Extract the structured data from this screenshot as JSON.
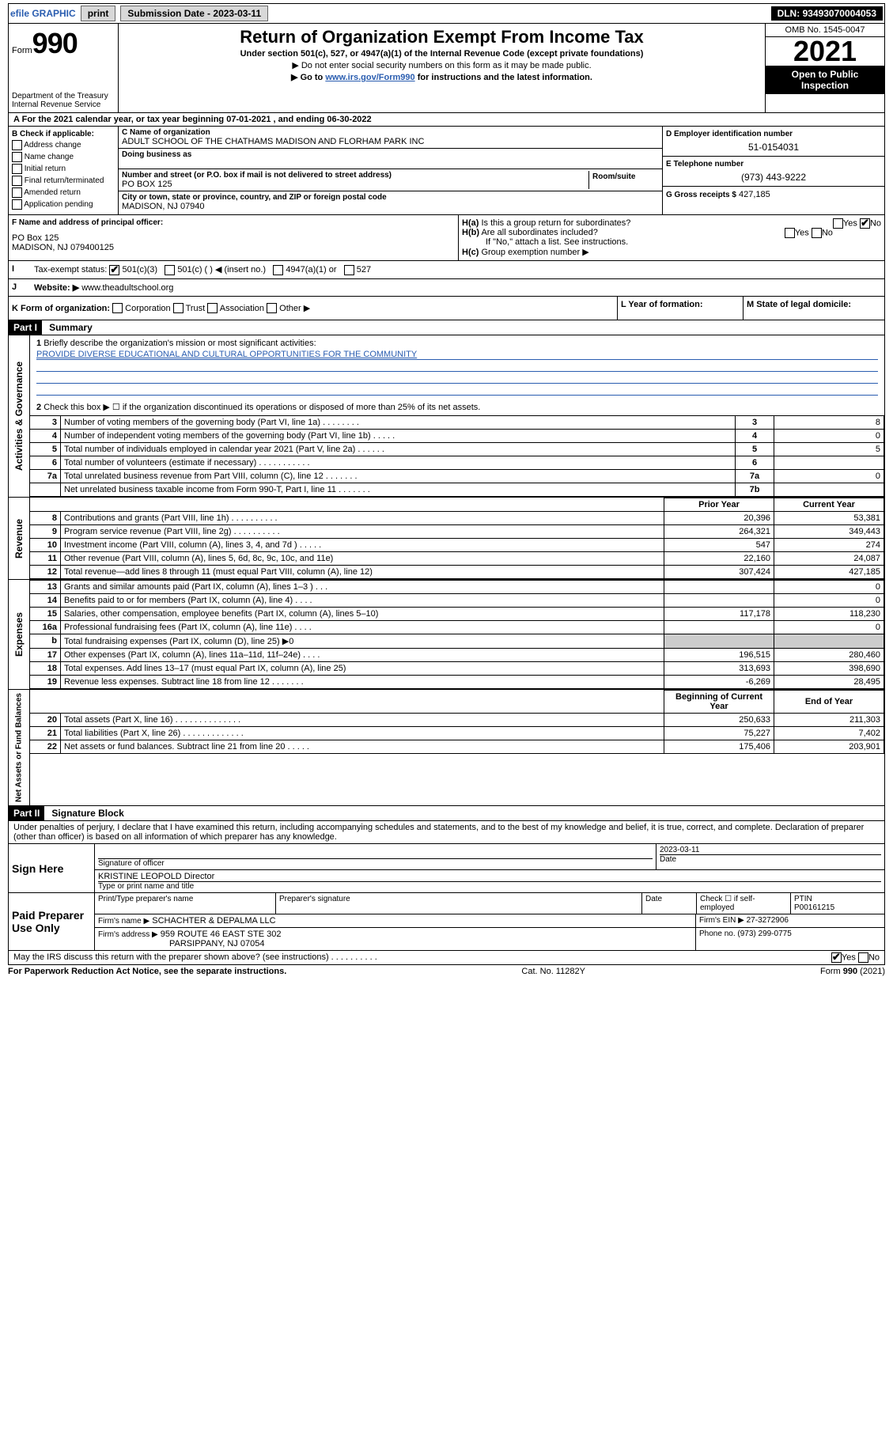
{
  "topbar": {
    "efile": "efile GRAPHIC",
    "print": "print",
    "subdate_label": "Submission Date - ",
    "subdate": "2023-03-11",
    "dln_label": "DLN: ",
    "dln": "93493070004053"
  },
  "header": {
    "form_prefix": "Form",
    "form_num": "990",
    "title": "Return of Organization Exempt From Income Tax",
    "subtitle": "Under section 501(c), 527, or 4947(a)(1) of the Internal Revenue Code (except private foundations)",
    "notice1": "▶ Do not enter social security numbers on this form as it may be made public.",
    "notice2_pre": "▶ Go to ",
    "notice2_link": "www.irs.gov/Form990",
    "notice2_post": " for instructions and the latest information.",
    "dept": "Department of the Treasury\nInternal Revenue Service",
    "omb": "OMB No. 1545-0047",
    "year": "2021",
    "inspection": "Open to Public Inspection"
  },
  "yearline": {
    "text_pre": "For the 2021 calendar year, or tax year beginning ",
    "begin": "07-01-2021",
    "mid": " , and ending ",
    "end": "06-30-2022"
  },
  "boxB": {
    "title": "B Check if applicable:",
    "items": [
      "Address change",
      "Name change",
      "Initial return",
      "Final return/terminated",
      "Amended return",
      "Application pending"
    ]
  },
  "boxC": {
    "label": "C Name of organization",
    "name": "ADULT SCHOOL OF THE CHATHAMS MADISON AND FLORHAM PARK INC",
    "dba_label": "Doing business as",
    "addr_label": "Number and street (or P.O. box if mail is not delivered to street address)",
    "room_label": "Room/suite",
    "addr": "PO Box 125",
    "city_label": "City or town, state or province, country, and ZIP or foreign postal code",
    "city": "MADISON, NJ  07940"
  },
  "boxD": {
    "label": "D Employer identification number",
    "val": "51-0154031"
  },
  "boxE": {
    "label": "E Telephone number",
    "val": "(973) 443-9222"
  },
  "boxG": {
    "label": "G Gross receipts $",
    "val": "427,185"
  },
  "boxF": {
    "label": "F Name and address of principal officer:",
    "addr1": "PO Box 125",
    "addr2": "MADISON, NJ  079400125"
  },
  "boxH": {
    "a": "Is this a group return for subordinates?",
    "b": "Are all subordinates included?",
    "c": "Group exemption number ▶",
    "note": "If \"No,\" attach a list. See instructions.",
    "yes": "Yes",
    "no": "No"
  },
  "boxI": {
    "label": "Tax-exempt status:",
    "o1": "501(c)(3)",
    "o2": "501(c) (  ) ◀ (insert no.)",
    "o3": "4947(a)(1) or",
    "o4": "527"
  },
  "boxJ": {
    "label": "Website: ▶",
    "val": "www.theadultschool.org"
  },
  "boxK": {
    "label": "K Form of organization:",
    "o1": "Corporation",
    "o2": "Trust",
    "o3": "Association",
    "o4": "Other ▶"
  },
  "boxL": {
    "label": "L Year of formation:"
  },
  "boxM": {
    "label": "M State of legal domicile:"
  },
  "part1": {
    "header": "Part I",
    "title": "Summary",
    "vert_activities": "Activities & Governance",
    "vert_revenue": "Revenue",
    "vert_expenses": "Expenses",
    "vert_net": "Net Assets or Fund Balances",
    "line1": "Briefly describe the organization's mission or most significant activities:",
    "mission": "PROVIDE DIVERSE EDUCATIONAL AND CULTURAL OPPORTUNITIES FOR THE COMMUNITY",
    "line2": "Check this box ▶ ☐ if the organization discontinued its operations or disposed of more than 25% of its net assets.",
    "rows_single": [
      {
        "n": "3",
        "t": "Number of voting members of the governing body (Part VI, line 1a)  .   .   .   .   .   .   .   .",
        "ln": "3",
        "v": "8"
      },
      {
        "n": "4",
        "t": "Number of independent voting members of the governing body (Part VI, line 1b)  .   .   .   .   .",
        "ln": "4",
        "v": "0"
      },
      {
        "n": "5",
        "t": "Total number of individuals employed in calendar year 2021 (Part V, line 2a)  .   .   .   .   .   .",
        "ln": "5",
        "v": "5"
      },
      {
        "n": "6",
        "t": "Total number of volunteers (estimate if necessary)  .   .   .   .   .   .   .   .   .   .   .",
        "ln": "6",
        "v": ""
      },
      {
        "n": "7a",
        "t": "Total unrelated business revenue from Part VIII, column (C), line 12  .   .   .   .   .   .   .",
        "ln": "7a",
        "v": "0"
      },
      {
        "n": "",
        "t": "Net unrelated business taxable income from Form 990-T, Part I, line 11  .   .   .   .   .   .   .",
        "ln": "7b",
        "v": ""
      }
    ],
    "col_prior": "Prior Year",
    "col_current": "Current Year",
    "rows_rev": [
      {
        "n": "8",
        "t": "Contributions and grants (Part VIII, line 1h)  .   .   .   .   .   .   .   .   .   .",
        "p": "20,396",
        "c": "53,381"
      },
      {
        "n": "9",
        "t": "Program service revenue (Part VIII, line 2g)  .   .   .   .   .   .   .   .   .   .",
        "p": "264,321",
        "c": "349,443"
      },
      {
        "n": "10",
        "t": "Investment income (Part VIII, column (A), lines 3, 4, and 7d )  .   .   .   .   .",
        "p": "547",
        "c": "274"
      },
      {
        "n": "11",
        "t": "Other revenue (Part VIII, column (A), lines 5, 6d, 8c, 9c, 10c, and 11e)",
        "p": "22,160",
        "c": "24,087"
      },
      {
        "n": "12",
        "t": "Total revenue—add lines 8 through 11 (must equal Part VIII, column (A), line 12)",
        "p": "307,424",
        "c": "427,185"
      }
    ],
    "rows_exp": [
      {
        "n": "13",
        "t": "Grants and similar amounts paid (Part IX, column (A), lines 1–3 )  .   .   .",
        "p": "",
        "c": "0"
      },
      {
        "n": "14",
        "t": "Benefits paid to or for members (Part IX, column (A), line 4)  .   .   .   .",
        "p": "",
        "c": "0"
      },
      {
        "n": "15",
        "t": "Salaries, other compensation, employee benefits (Part IX, column (A), lines 5–10)",
        "p": "117,178",
        "c": "118,230"
      },
      {
        "n": "16a",
        "t": "Professional fundraising fees (Part IX, column (A), line 11e)  .   .   .   .",
        "p": "",
        "c": "0"
      },
      {
        "n": "b",
        "t": "Total fundraising expenses (Part IX, column (D), line 25) ▶0",
        "p": "shade",
        "c": "shade"
      },
      {
        "n": "17",
        "t": "Other expenses (Part IX, column (A), lines 11a–11d, 11f–24e)  .   .   .   .",
        "p": "196,515",
        "c": "280,460"
      },
      {
        "n": "18",
        "t": "Total expenses. Add lines 13–17 (must equal Part IX, column (A), line 25)",
        "p": "313,693",
        "c": "398,690"
      },
      {
        "n": "19",
        "t": "Revenue less expenses. Subtract line 18 from line 12  .   .   .   .   .   .   .",
        "p": "-6,269",
        "c": "28,495"
      }
    ],
    "col_begin": "Beginning of Current Year",
    "col_end": "End of Year",
    "rows_net": [
      {
        "n": "20",
        "t": "Total assets (Part X, line 16)  .   .   .   .   .   .   .   .   .   .   .   .   .   .",
        "p": "250,633",
        "c": "211,303"
      },
      {
        "n": "21",
        "t": "Total liabilities (Part X, line 26)  .   .   .   .   .   .   .   .   .   .   .   .   .",
        "p": "75,227",
        "c": "7,402"
      },
      {
        "n": "22",
        "t": "Net assets or fund balances. Subtract line 21 from line 20  .   .   .   .   .",
        "p": "175,406",
        "c": "203,901"
      }
    ]
  },
  "part2": {
    "header": "Part II",
    "title": "Signature Block",
    "declaration": "Under penalties of perjury, I declare that I have examined this return, including accompanying schedules and statements, and to the best of my knowledge and belief, it is true, correct, and complete. Declaration of preparer (other than officer) is based on all information of which preparer has any knowledge."
  },
  "sign": {
    "here": "Sign Here",
    "sig_officer": "Signature of officer",
    "date_label": "Date",
    "date": "2023-03-11",
    "name_title": "KRISTINE LEOPOLD  Director",
    "type_name": "Type or print name and title"
  },
  "preparer": {
    "label": "Paid Preparer Use Only",
    "print_name": "Print/Type preparer's name",
    "sig": "Preparer's signature",
    "date": "Date",
    "check": "Check ☐ if self-employed",
    "ptin_label": "PTIN",
    "ptin": "P00161215",
    "firm_name_label": "Firm's name    ▶",
    "firm_name": "SCHACHTER & DEPALMA LLC",
    "firm_ein_label": "Firm's EIN ▶",
    "firm_ein": "27-3272906",
    "firm_addr_label": "Firm's address ▶",
    "firm_addr1": "959 ROUTE 46 EAST STE 302",
    "firm_addr2": "PARSIPPANY, NJ  07054",
    "phone_label": "Phone no.",
    "phone": "(973) 299-0775"
  },
  "discuss": {
    "text": "May the IRS discuss this return with the preparer shown above? (see instructions)  .   .   .   .   .   .   .   .   .   .",
    "yes": "Yes",
    "no": "No"
  },
  "footer": {
    "left": "For Paperwork Reduction Act Notice, see the separate instructions.",
    "mid": "Cat. No. 11282Y",
    "right": "Form 990 (2021)"
  }
}
